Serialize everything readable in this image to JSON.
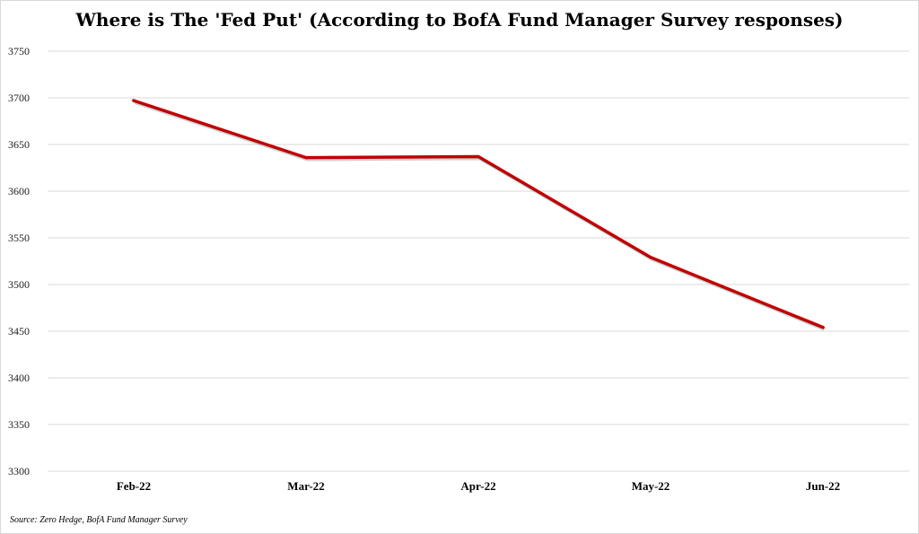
{
  "chart_data": {
    "type": "line",
    "title": "Where is The 'Fed Put' (According to BofA Fund Manager Survey responses)",
    "xlabel": "",
    "ylabel": "",
    "categories": [
      "Feb-22",
      "Mar-22",
      "Apr-22",
      "May-22",
      "Jun-22"
    ],
    "series": [
      {
        "values": [
          3697,
          3636,
          3637,
          3529,
          3454
        ],
        "color": "#c00000"
      }
    ],
    "ylim": [
      3300,
      3750
    ],
    "yticks": [
      "3300",
      "3350",
      "3400",
      "3450",
      "3500",
      "3550",
      "3600",
      "3650",
      "3700",
      "3750"
    ],
    "grid": true,
    "legend": "none",
    "source": "Source: Zero Hedge, BofA Fund Manager Survey"
  }
}
